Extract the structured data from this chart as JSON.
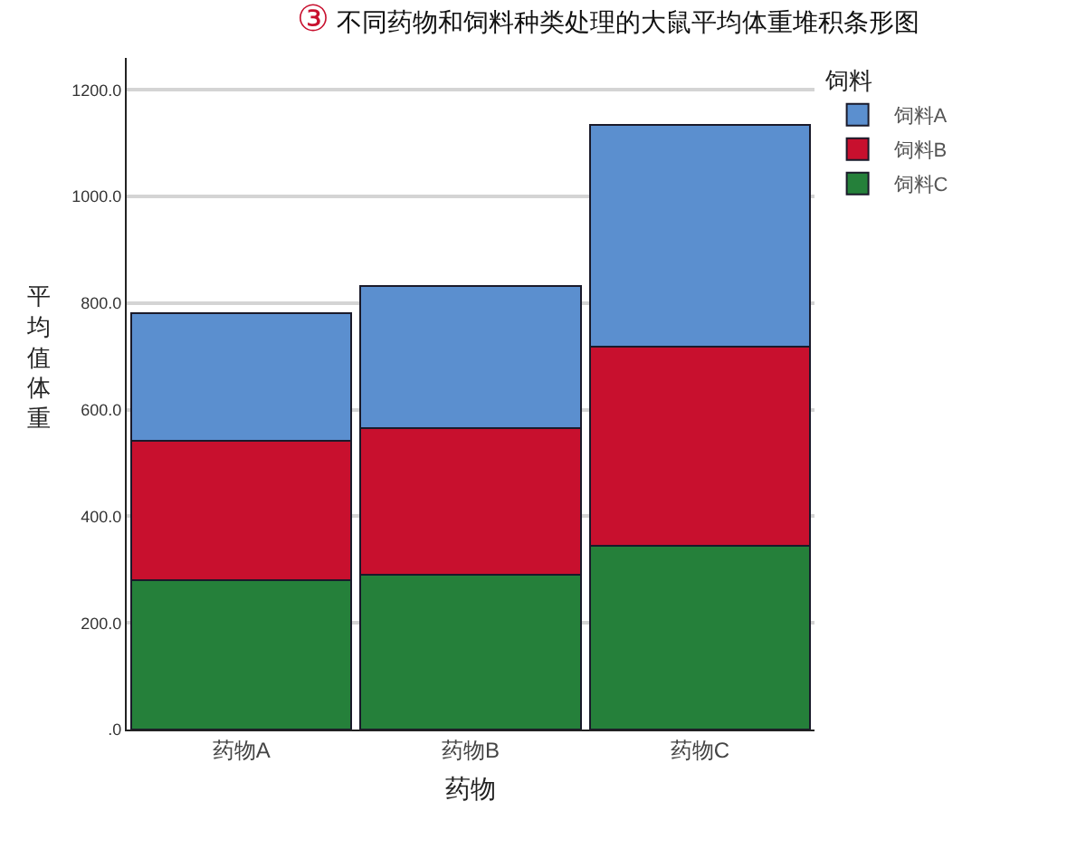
{
  "chart_data": {
    "type": "bar",
    "title": "③ 不同药物和饲料种类处理的大鼠平均体重堆积条形图",
    "xlabel": "药物",
    "ylabel": "平均值体重",
    "legend_title": "饲料",
    "categories": [
      "药物A",
      "药物B",
      "药物C"
    ],
    "stacked": true,
    "series": [
      {
        "name": "饲料C",
        "color": "#25803a",
        "values": [
          280,
          290,
          344
        ]
      },
      {
        "name": "饲料B",
        "color": "#c8102e",
        "values": [
          262,
          276,
          375
        ]
      },
      {
        "name": "饲料A",
        "color": "#5b8fcf",
        "values": [
          239,
          266,
          416
        ]
      }
    ],
    "ylim": [
      0,
      1260
    ],
    "yticks": [
      {
        "value": 0,
        "label": ".0"
      },
      {
        "value": 200,
        "label": "200.0"
      },
      {
        "value": 400,
        "label": "400.0"
      },
      {
        "value": 600,
        "label": "600.0"
      },
      {
        "value": 800,
        "label": "800.0"
      },
      {
        "value": 1000,
        "label": "1000.0"
      },
      {
        "value": 1200,
        "label": "1200.0"
      }
    ],
    "grid": "y",
    "legend": "top right"
  }
}
